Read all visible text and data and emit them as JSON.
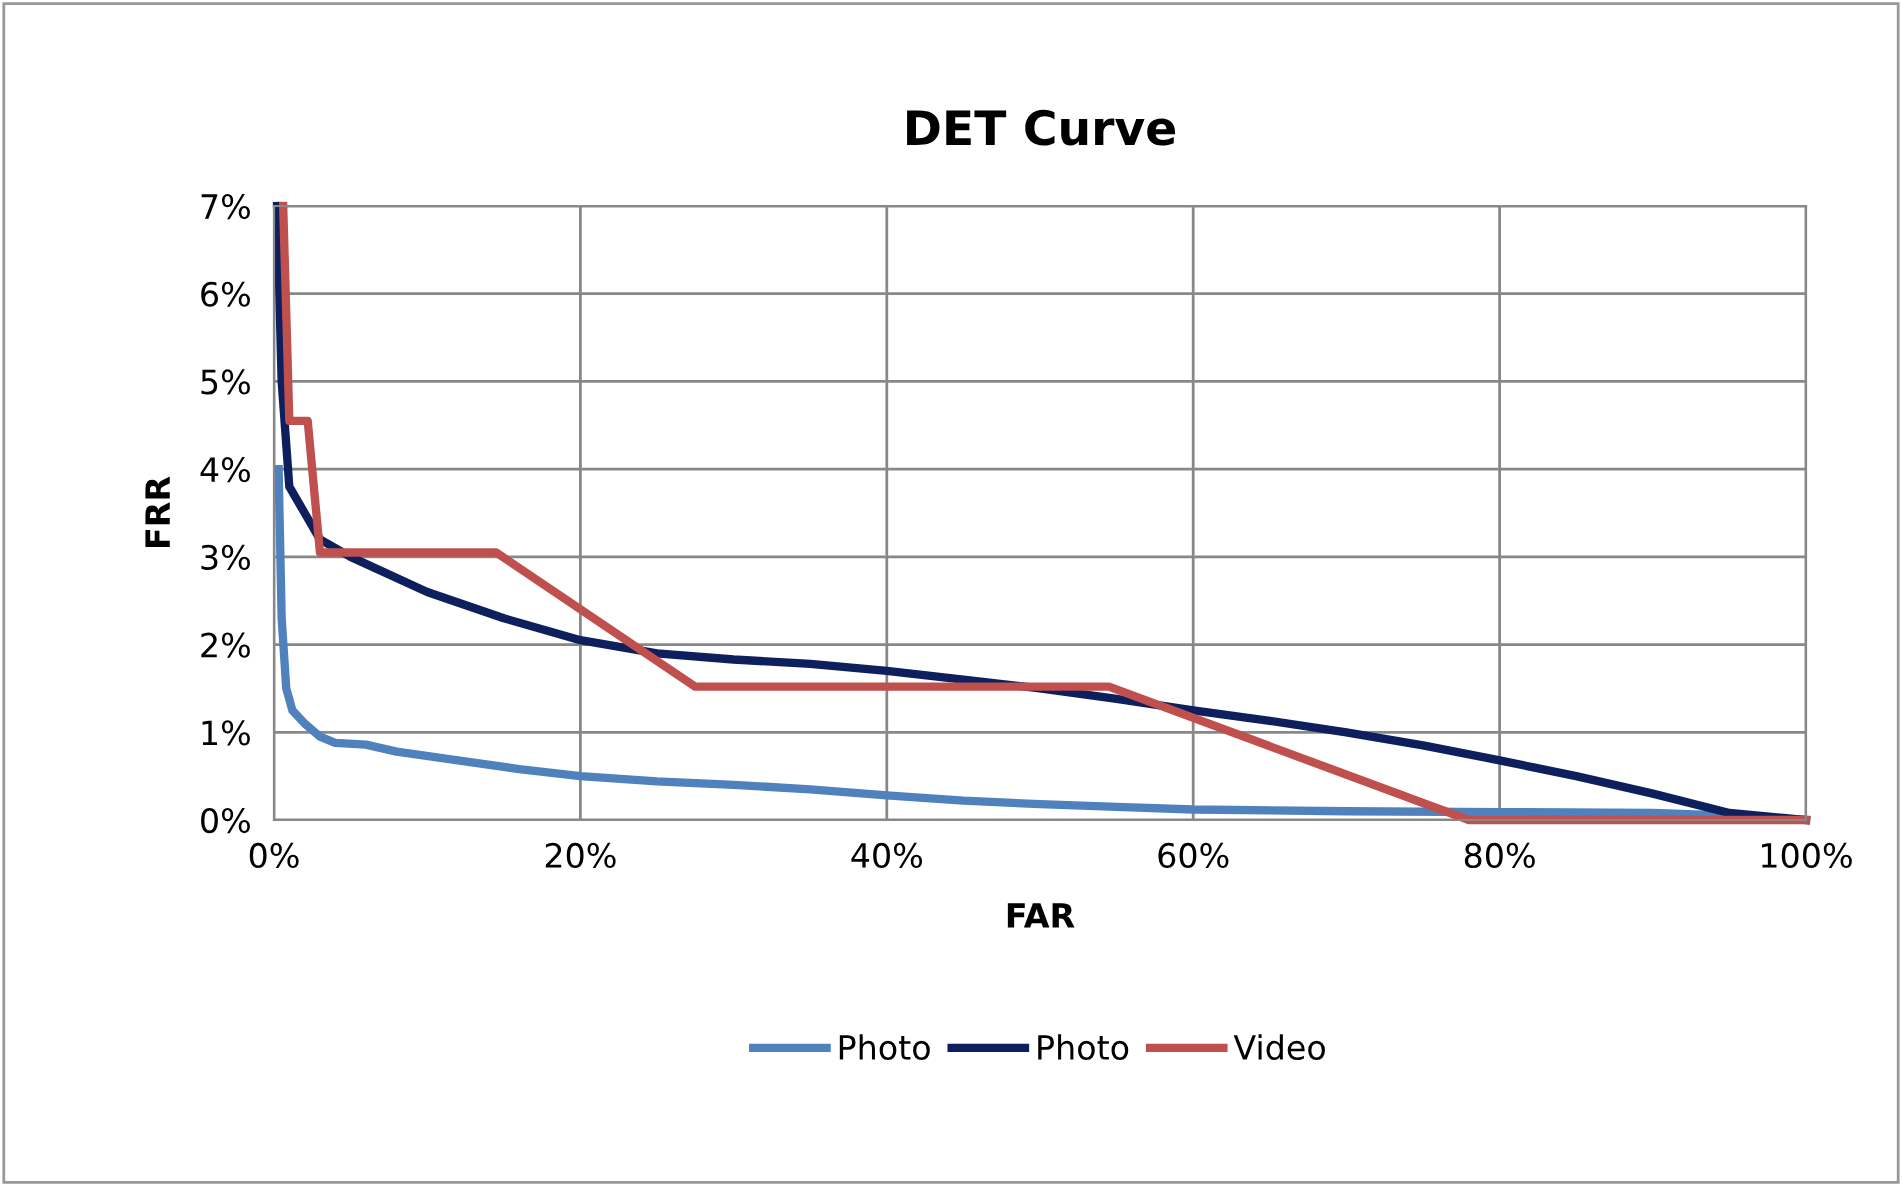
{
  "chart_data": {
    "type": "line",
    "title": "DET Curve",
    "xlabel": "FAR",
    "ylabel": "FRR",
    "xlim": [
      0,
      100
    ],
    "ylim": [
      0,
      7
    ],
    "xticks": [
      {
        "value": 0,
        "label": "0%"
      },
      {
        "value": 20,
        "label": "20%"
      },
      {
        "value": 40,
        "label": "40%"
      },
      {
        "value": 60,
        "label": "60%"
      },
      {
        "value": 80,
        "label": "80%"
      },
      {
        "value": 100,
        "label": "100%"
      }
    ],
    "yticks": [
      {
        "value": 0,
        "label": "0%"
      },
      {
        "value": 1,
        "label": "1%"
      },
      {
        "value": 2,
        "label": "2%"
      },
      {
        "value": 3,
        "label": "3%"
      },
      {
        "value": 4,
        "label": "4%"
      },
      {
        "value": 5,
        "label": "5%"
      },
      {
        "value": 6,
        "label": "6%"
      },
      {
        "value": 7,
        "label": "7%"
      }
    ],
    "grid": true,
    "legend": "bottom",
    "marker": "none",
    "line_style": "solid",
    "series": [
      {
        "name": "Photo",
        "color": "#4f81bd",
        "x": [
          0.3,
          0.5,
          0.8,
          1.2,
          2,
          3,
          4,
          6,
          8,
          12,
          16,
          20,
          25,
          30,
          35,
          40,
          45,
          50,
          55,
          60,
          70,
          80,
          90,
          95,
          100
        ],
        "values": [
          4.0,
          2.3,
          1.5,
          1.25,
          1.1,
          0.95,
          0.88,
          0.86,
          0.78,
          0.68,
          0.58,
          0.5,
          0.44,
          0.4,
          0.35,
          0.28,
          0.22,
          0.18,
          0.15,
          0.12,
          0.1,
          0.09,
          0.08,
          0.05,
          0
        ]
      },
      {
        "name": "Photo",
        "color": "#0d1f5c",
        "x": [
          0.2,
          0.5,
          1,
          2,
          3,
          5,
          10,
          15,
          20,
          25,
          30,
          35,
          40,
          45,
          50,
          55,
          60,
          65,
          70,
          75,
          80,
          85,
          90,
          95,
          100
        ],
        "values": [
          7.0,
          5.0,
          3.8,
          3.5,
          3.2,
          3.0,
          2.6,
          2.3,
          2.05,
          1.9,
          1.83,
          1.78,
          1.7,
          1.6,
          1.5,
          1.38,
          1.25,
          1.13,
          1.0,
          0.85,
          0.68,
          0.5,
          0.3,
          0.08,
          0
        ]
      },
      {
        "name": "Video",
        "color": "#c0504d",
        "x": [
          0.6,
          1,
          2.2,
          3,
          14.5,
          27.5,
          54.5,
          78,
          100
        ],
        "values": [
          7.0,
          4.55,
          4.55,
          3.05,
          3.05,
          1.52,
          1.52,
          0,
          0
        ]
      }
    ]
  }
}
